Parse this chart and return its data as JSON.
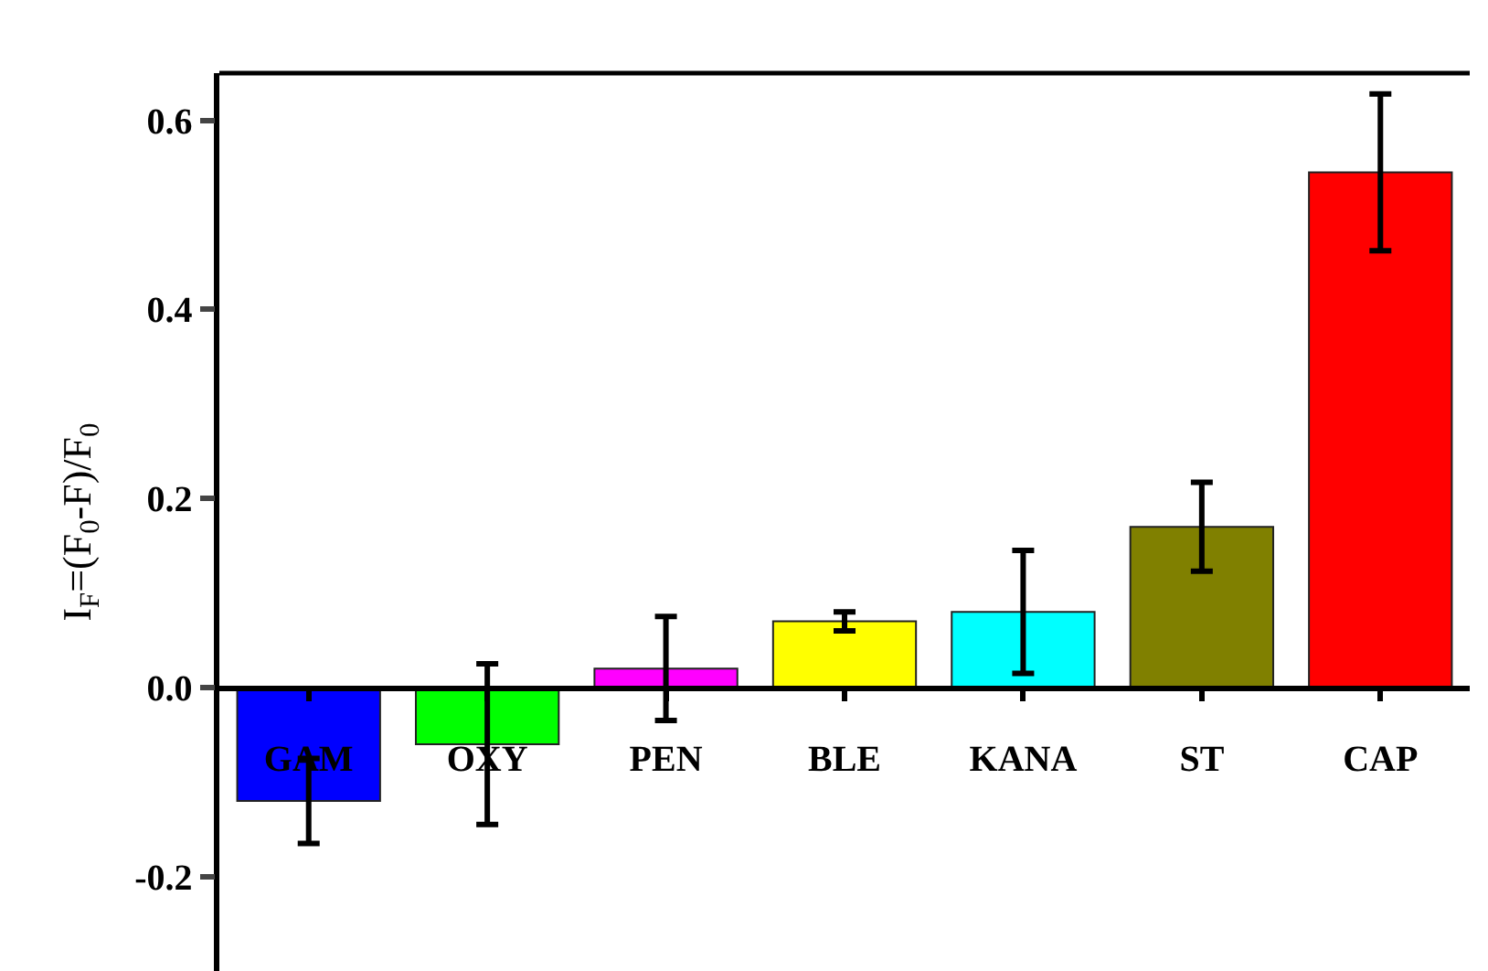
{
  "chart_data": {
    "type": "bar",
    "ylabel": "I$_{F}$=(F$_{0}$-F)/F$_{0}$",
    "categories": [
      "GAM",
      "OXY",
      "PEN",
      "BLE",
      "KANA",
      "ST",
      "CAP"
    ],
    "values": [
      -0.12,
      -0.06,
      0.02,
      0.07,
      0.08,
      0.17,
      0.545
    ],
    "errors": [
      0.045,
      0.085,
      0.055,
      0.01,
      0.065,
      0.047,
      0.083
    ],
    "colors": [
      "#0000ff",
      "#00ff00",
      "#ff00ff",
      "#ffff00",
      "#00ffff",
      "#808000",
      "#ff0000"
    ],
    "ylim": [
      -0.3,
      0.65
    ],
    "yticks": [
      {
        "value": -0.2,
        "label": "-0.2"
      },
      {
        "value": 0,
        "label": "0.0"
      },
      {
        "value": 0.2,
        "label": "0.2"
      },
      {
        "value": 0.4,
        "label": "0.4"
      },
      {
        "value": 0.6,
        "label": "0.6"
      }
    ],
    "grid": false
  }
}
